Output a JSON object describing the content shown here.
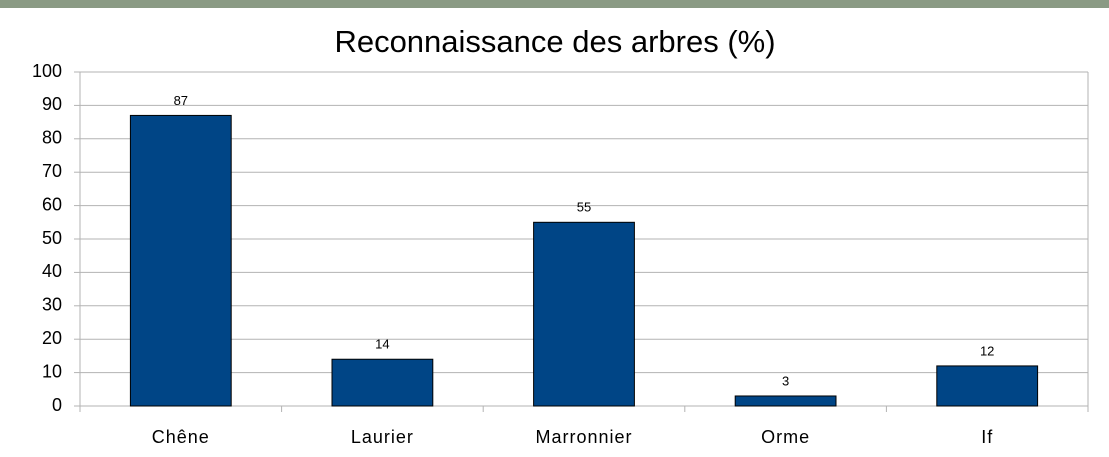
{
  "chart_data": {
    "type": "bar",
    "title": "Reconnaissance des arbres (%)",
    "categories": [
      "Chêne",
      "Laurier",
      "Marronnier",
      "Orme",
      "If"
    ],
    "values": [
      87,
      14,
      55,
      3,
      12
    ],
    "color": "#004586",
    "ylim": [
      0,
      100
    ],
    "yticks": [
      0,
      10,
      20,
      30,
      40,
      50,
      60,
      70,
      80,
      90,
      100
    ],
    "grid": true
  }
}
